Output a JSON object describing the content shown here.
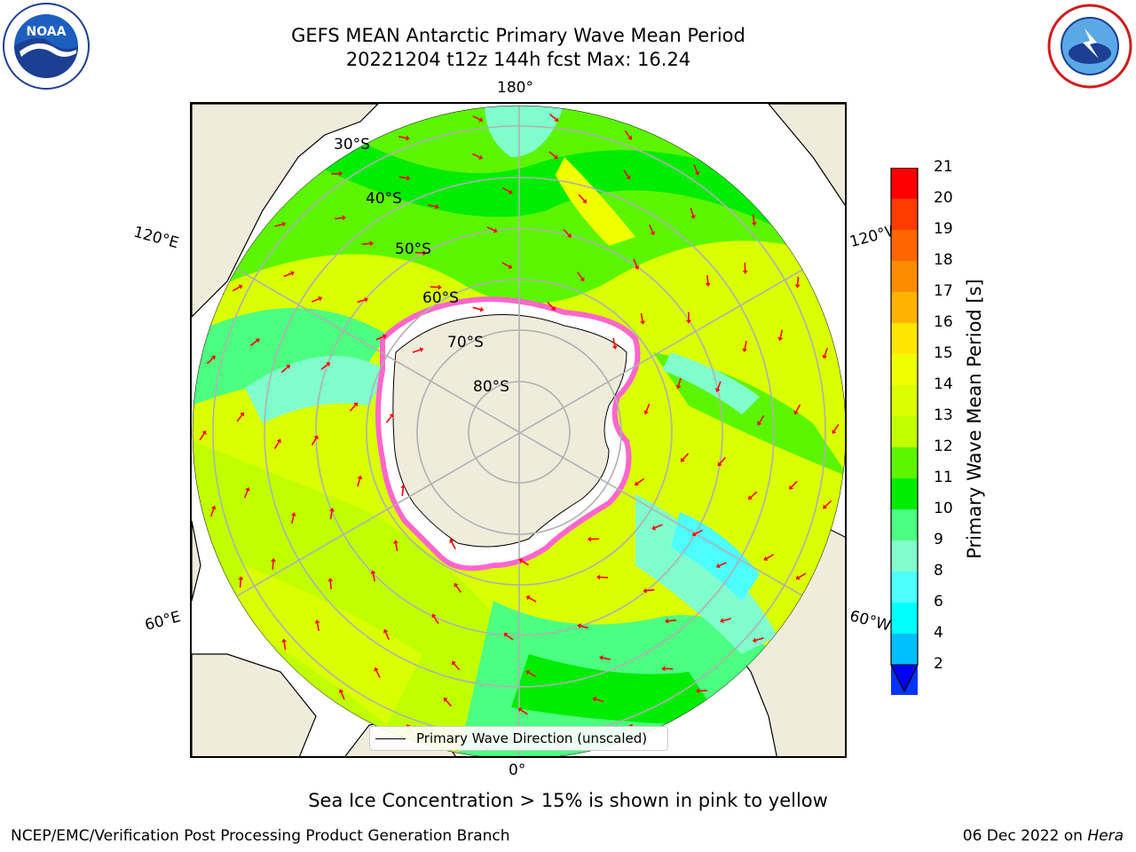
{
  "title_line1": "GEFS MEAN Antarctic Primary Wave Mean Period",
  "title_line2": "20221204 t12z 144h fcst   Max: 16.24",
  "logos": {
    "left": "NOAA",
    "right": "NATIONAL WEATHER SERVICE"
  },
  "meridian_labels": {
    "top": "180°",
    "bottom": "0°",
    "upper_left": "120°E",
    "upper_right": "120°W",
    "lower_left": "60°E",
    "lower_right": "60°W"
  },
  "latitude_labels": [
    "30°S",
    "40°S",
    "50°S",
    "60°S",
    "70°S",
    "80°S"
  ],
  "legend_label": "Primary Wave Direction (unscaled)",
  "colorbar": {
    "label": "Primary Wave Mean Period [s]",
    "ticks": [
      "21",
      "20",
      "19",
      "18",
      "17",
      "16",
      "15",
      "14",
      "13",
      "12",
      "11",
      "10",
      "9",
      "8",
      "6",
      "4",
      "2"
    ],
    "colors": [
      "#ff0000",
      "#ff3b00",
      "#ff6600",
      "#ff8c00",
      "#ffb300",
      "#ffe600",
      "#f0ff00",
      "#d9ff00",
      "#bfff00",
      "#5cf500",
      "#00ec00",
      "#4cff80",
      "#80ffcc",
      "#4dffff",
      "#00ffff",
      "#00bfff",
      "#0033ff"
    ]
  },
  "subtitle": "Sea Ice Concentration > 15% is shown in pink to yellow",
  "footer_left": "NCEP/EMC/Verification Post Processing Product Generation Branch",
  "footer_right_date": "06 Dec 2022 on",
  "footer_right_host": "Hera"
}
